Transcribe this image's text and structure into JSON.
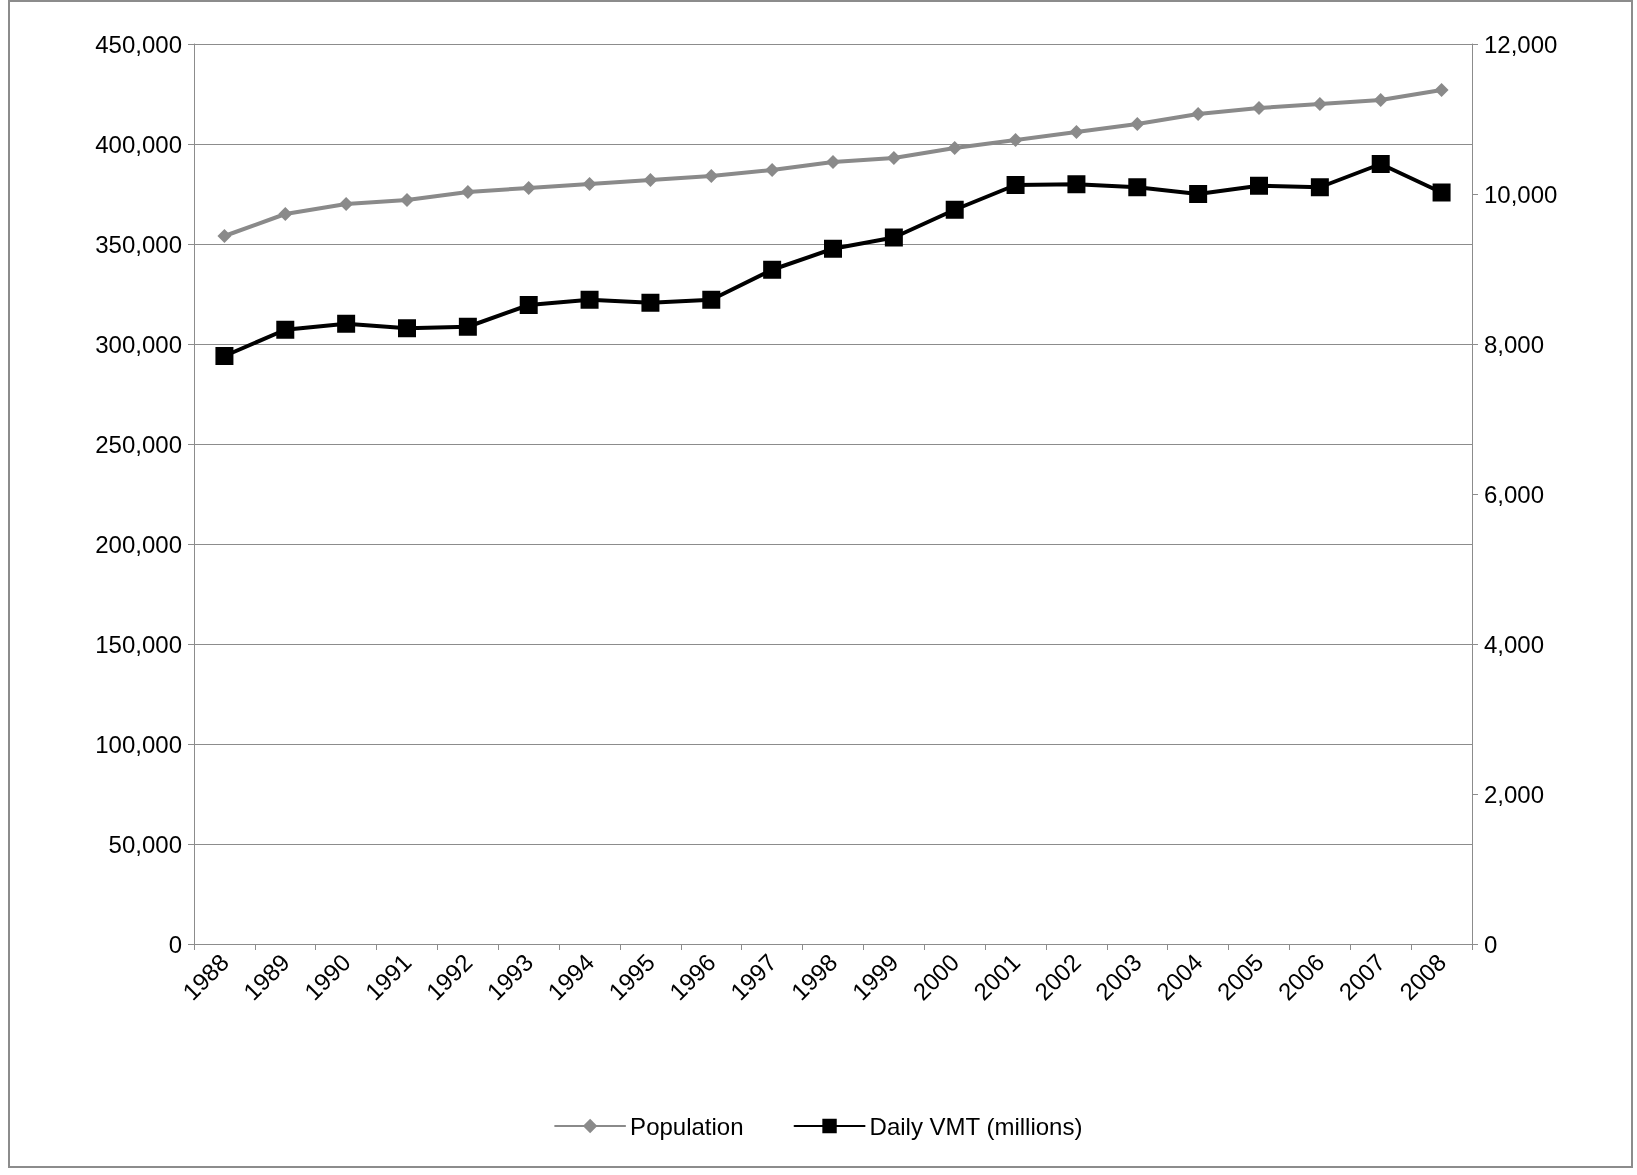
{
  "chart_data": {
    "type": "line",
    "categories": [
      "1988",
      "1989",
      "1990",
      "1991",
      "1992",
      "1993",
      "1994",
      "1995",
      "1996",
      "1997",
      "1998",
      "1999",
      "2000",
      "2001",
      "2002",
      "2003",
      "2004",
      "2005",
      "2006",
      "2007",
      "2008"
    ],
    "series": [
      {
        "name": "Population",
        "color": "#8a8a8a",
        "marker": "diamond",
        "values": [
          354000,
          365000,
          370000,
          372000,
          376000,
          378000,
          380000,
          382000,
          384000,
          387000,
          391000,
          393000,
          398000,
          402000,
          406000,
          410000,
          415000,
          418000,
          420000,
          422000,
          427000
        ]
      },
      {
        "name": "Daily VMT (millions)",
        "color": "#000000",
        "marker": "square",
        "axis": "y2",
        "values": [
          7840,
          8190,
          8270,
          8210,
          8230,
          8520,
          8590,
          8550,
          8590,
          8990,
          9270,
          9420,
          9790,
          10120,
          10130,
          10090,
          10000,
          10110,
          10090,
          10400,
          10020
        ]
      }
    ],
    "ylim": [
      0,
      450000
    ],
    "yticks": [
      0,
      {
        "value": 50000,
        "label": "50,000"
      },
      {
        "value": 100000,
        "label": "100,000"
      },
      {
        "value": 150000,
        "label": "150,000"
      },
      {
        "value": 200000,
        "label": "200,000"
      },
      {
        "value": 250000,
        "label": "250,000"
      },
      {
        "value": 300000,
        "label": "300,000"
      },
      {
        "value": 350000,
        "label": "350,000"
      },
      {
        "value": 400000,
        "label": "400,000"
      },
      {
        "value": 450000,
        "label": "450,000"
      }
    ],
    "y2lim": [
      0,
      12000
    ],
    "y2ticks": [
      0,
      {
        "value": 2000,
        "label": "2,000"
      },
      {
        "value": 4000,
        "label": "4,000"
      },
      {
        "value": 6000,
        "label": "6,000"
      },
      {
        "value": 8000,
        "label": "8,000"
      },
      {
        "value": 10000,
        "label": "10,000"
      },
      {
        "value": 12000,
        "label": "12,000"
      }
    ],
    "grid": "y",
    "legend": "bottom",
    "line_style": "solid"
  }
}
